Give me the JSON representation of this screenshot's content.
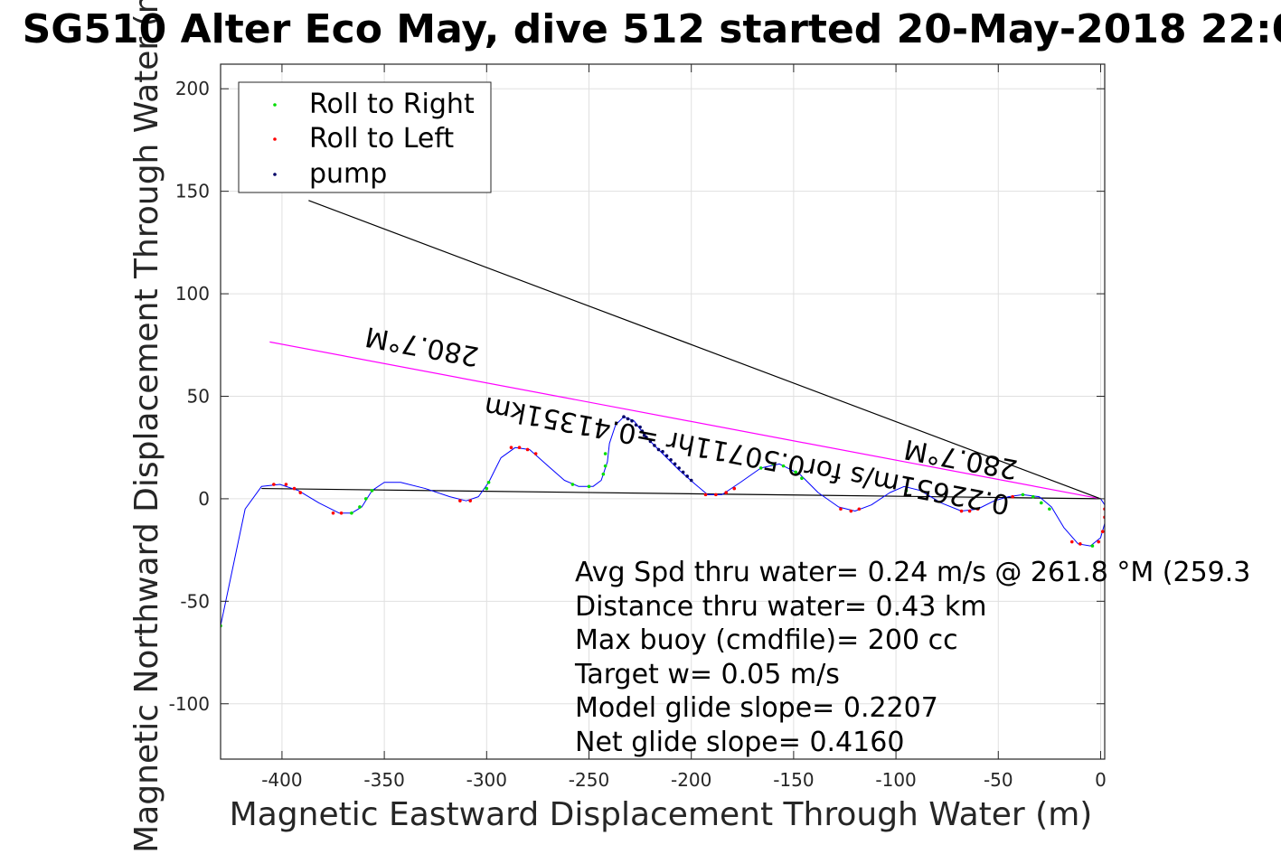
{
  "chart_data": {
    "type": "scatter",
    "title": "SG510 Alter Eco May, dive 512 started 20-May-2018 22:0",
    "xlabel": "Magnetic Eastward Displacement Through Water (m)",
    "ylabel": "Magnetic Northward Displacement Through Water (m)",
    "xlim": [
      -430,
      2
    ],
    "ylim": [
      -127,
      212
    ],
    "xticks": [
      -400,
      -350,
      -300,
      -250,
      -200,
      -150,
      -100,
      -50,
      0
    ],
    "yticks": [
      -100,
      -50,
      0,
      50,
      100,
      150,
      200
    ],
    "grid": true,
    "legend_position": "top-left",
    "legend": [
      {
        "name": "Roll to Right",
        "color": "#00dd00"
      },
      {
        "name": "Roll to Left",
        "color": "#ff0000"
      },
      {
        "name": "pump",
        "color": "#000066"
      }
    ],
    "track": {
      "color": "#0000ff",
      "points": [
        [
          -430,
          -62
        ],
        [
          -418,
          -5
        ],
        [
          -410,
          6
        ],
        [
          -401,
          7
        ],
        [
          -392,
          4
        ],
        [
          -382,
          -2
        ],
        [
          -372,
          -7
        ],
        [
          -366,
          -7
        ],
        [
          -361,
          -4
        ],
        [
          -356,
          4
        ],
        [
          -350,
          8
        ],
        [
          -342,
          8
        ],
        [
          -330,
          5
        ],
        [
          -318,
          1
        ],
        [
          -310,
          -1
        ],
        [
          -304,
          1
        ],
        [
          -299,
          8
        ],
        [
          -293,
          20
        ],
        [
          -286,
          25
        ],
        [
          -279,
          24
        ],
        [
          -270,
          16
        ],
        [
          -262,
          9
        ],
        [
          -255,
          6
        ],
        [
          -248,
          6
        ],
        [
          -244,
          9
        ],
        [
          -241,
          18
        ],
        [
          -240,
          27
        ],
        [
          -237,
          36
        ],
        [
          -233,
          40
        ],
        [
          -228,
          38
        ],
        [
          -222,
          30
        ],
        [
          -215,
          23
        ],
        [
          -206,
          14
        ],
        [
          -198,
          7
        ],
        [
          -192,
          2
        ],
        [
          -185,
          2
        ],
        [
          -176,
          8
        ],
        [
          -166,
          15
        ],
        [
          -157,
          17
        ],
        [
          -147,
          12
        ],
        [
          -138,
          3
        ],
        [
          -128,
          -4
        ],
        [
          -120,
          -6
        ],
        [
          -112,
          -3
        ],
        [
          -103,
          3
        ],
        [
          -96,
          6
        ],
        [
          -88,
          4
        ],
        [
          -78,
          -2
        ],
        [
          -68,
          -6
        ],
        [
          -60,
          -5
        ],
        [
          -52,
          -1
        ],
        [
          -45,
          1
        ],
        [
          -38,
          2
        ],
        [
          -30,
          1
        ],
        [
          -24,
          -4
        ],
        [
          -18,
          -14
        ],
        [
          -11,
          -22
        ],
        [
          -5,
          -23
        ],
        [
          0,
          -19
        ],
        [
          2,
          -12
        ],
        [
          2,
          -3
        ],
        [
          0,
          0
        ]
      ]
    },
    "roll_right_points": [
      [
        -430,
        -62
      ],
      [
        -366,
        -7
      ],
      [
        -362,
        -4
      ],
      [
        -359,
        0
      ],
      [
        -356,
        4
      ],
      [
        -300,
        5
      ],
      [
        -299,
        8
      ],
      [
        -258,
        7
      ],
      [
        -250,
        6
      ],
      [
        -243,
        12
      ],
      [
        -242,
        16
      ],
      [
        -242,
        22
      ],
      [
        -166,
        15
      ],
      [
        -160,
        17
      ],
      [
        -155,
        16
      ],
      [
        -149,
        13
      ],
      [
        -146,
        10
      ],
      [
        -95,
        4
      ],
      [
        -38,
        2
      ],
      [
        -33,
        1
      ],
      [
        -29,
        -2
      ],
      [
        -25,
        -5
      ],
      [
        -4,
        -23
      ]
    ],
    "roll_left_points": [
      [
        -404,
        7
      ],
      [
        -398,
        7
      ],
      [
        -394,
        5
      ],
      [
        -391,
        3
      ],
      [
        -375,
        -7
      ],
      [
        -371,
        -7
      ],
      [
        -313,
        -1
      ],
      [
        -308,
        -1
      ],
      [
        -288,
        25
      ],
      [
        -284,
        25
      ],
      [
        -280,
        24
      ],
      [
        -276,
        22
      ],
      [
        -193,
        2
      ],
      [
        -188,
        2
      ],
      [
        -183,
        3
      ],
      [
        -179,
        5
      ],
      [
        -127,
        -5
      ],
      [
        -122,
        -6
      ],
      [
        -118,
        -5
      ],
      [
        -68,
        -6
      ],
      [
        -64,
        -6
      ],
      [
        -60,
        -5
      ],
      [
        -43,
        1
      ],
      [
        -14,
        -21
      ],
      [
        -10,
        -22
      ],
      [
        -1,
        -21
      ],
      [
        1,
        -16
      ],
      [
        2,
        -9
      ],
      [
        2,
        -5
      ]
    ],
    "pump_points": [
      [
        -233,
        40
      ],
      [
        -231,
        39
      ],
      [
        -229,
        38
      ],
      [
        -227,
        36
      ],
      [
        -225,
        35
      ],
      [
        -224,
        33
      ],
      [
        -223,
        31
      ],
      [
        -222,
        30
      ],
      [
        -220,
        28
      ],
      [
        -218,
        26
      ],
      [
        -216,
        24
      ],
      [
        -214,
        23
      ],
      [
        -212,
        21
      ],
      [
        -210,
        19
      ],
      [
        -208,
        17
      ],
      [
        -206,
        15
      ],
      [
        -204,
        13
      ],
      [
        -202,
        11
      ],
      [
        -200,
        9
      ]
    ],
    "lines": [
      {
        "name": "net-displacement-line",
        "color": "#000000",
        "points": [
          [
            -410,
            5
          ],
          [
            0,
            0
          ]
        ]
      },
      {
        "name": "current-line",
        "color": "#ff00ff",
        "points": [
          [
            -406,
            76.5
          ],
          [
            0,
            0
          ]
        ]
      },
      {
        "name": "upper-diagonal-line",
        "color": "#000000",
        "points": [
          [
            -387,
            145.5
          ],
          [
            0,
            0
          ]
        ]
      }
    ],
    "annotations": {
      "heading_upper": "280.7°M",
      "heading_lower": "280.7°M",
      "current_summary": "0.22651m/s for0.50711hr =0.41351km"
    },
    "stats": [
      "Avg Spd thru water=  0.24 m/s @ 261.8 °M (259.3",
      "Distance thru water=  0.43 km",
      "Max buoy (cmdfile)= 200 cc",
      "Target w= 0.05 m/s",
      "Model glide slope= 0.2207",
      "Net glide slope= 0.4160"
    ]
  }
}
